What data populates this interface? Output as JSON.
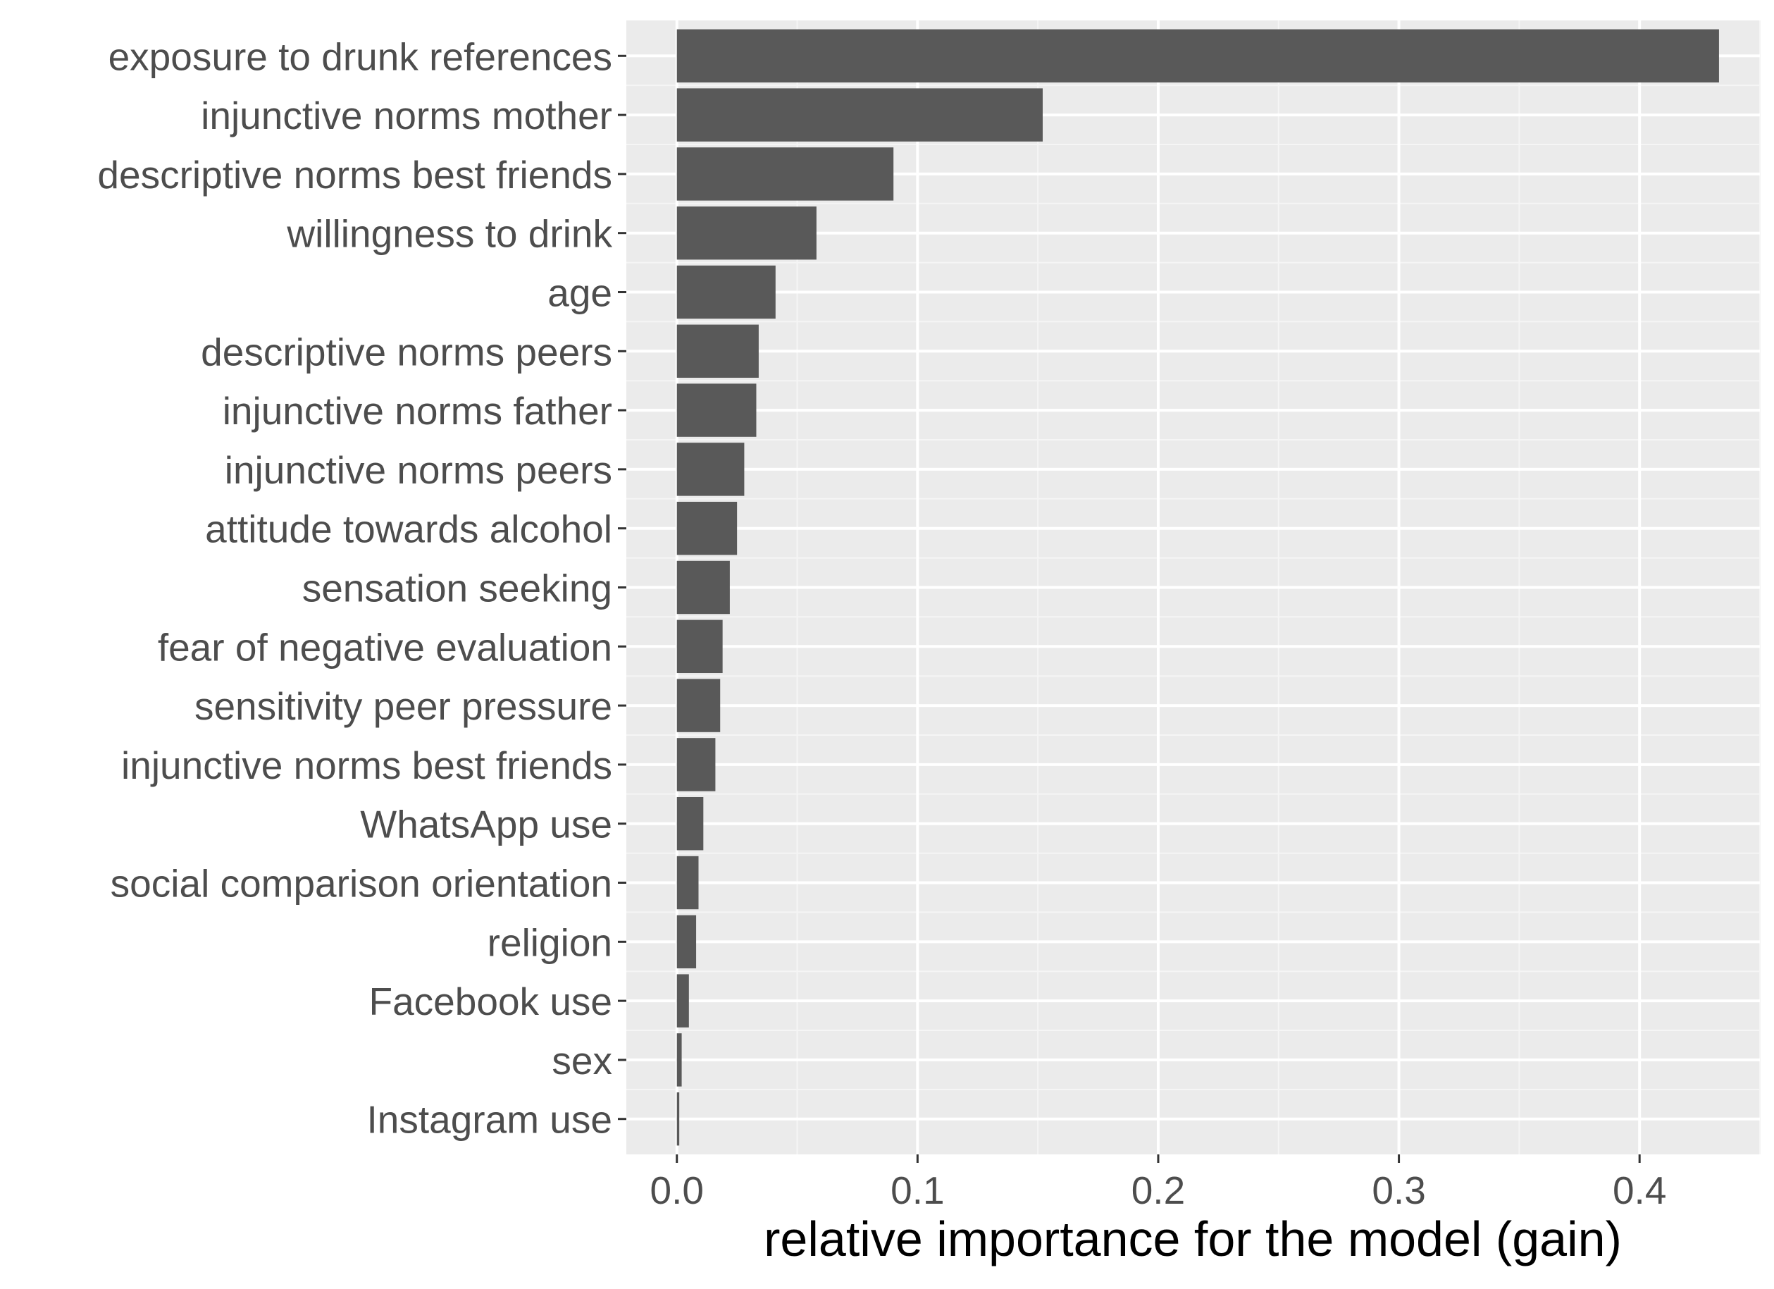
{
  "chart_data": {
    "type": "bar",
    "orientation": "horizontal",
    "title": "",
    "xlabel": "relative importance for the model (gain)",
    "ylabel": "",
    "xlim": [
      -0.021,
      0.45
    ],
    "x_ticks": [
      0.0,
      0.1,
      0.2,
      0.3,
      0.4
    ],
    "x_tick_labels": [
      "0.0",
      "0.1",
      "0.2",
      "0.3",
      "0.4"
    ],
    "grid": true,
    "legend": "none",
    "categories": [
      "exposure to drunk references",
      "injunctive norms mother",
      "descriptive norms best friends",
      "willingness to drink",
      "age",
      "descriptive norms peers",
      "injunctive norms father",
      "injunctive norms peers",
      "attitude towards alcohol",
      "sensation seeking",
      "fear of negative evaluation",
      "sensitivity peer pressure",
      "injunctive norms best friends",
      "WhatsApp use",
      "social comparison orientation",
      "religion",
      "Facebook use",
      "sex",
      "Instagram use"
    ],
    "values": [
      0.433,
      0.152,
      0.09,
      0.058,
      0.041,
      0.034,
      0.033,
      0.028,
      0.025,
      0.022,
      0.019,
      0.018,
      0.016,
      0.011,
      0.009,
      0.008,
      0.005,
      0.002,
      0.001
    ],
    "colors": {
      "bar": "#595959",
      "panel_background": "#ebebeb",
      "grid_major": "#ffffff",
      "grid_minor": "#f5f5f5",
      "tick": "#333333",
      "label": "#4d4d4d",
      "axis_title": "#000000"
    }
  }
}
